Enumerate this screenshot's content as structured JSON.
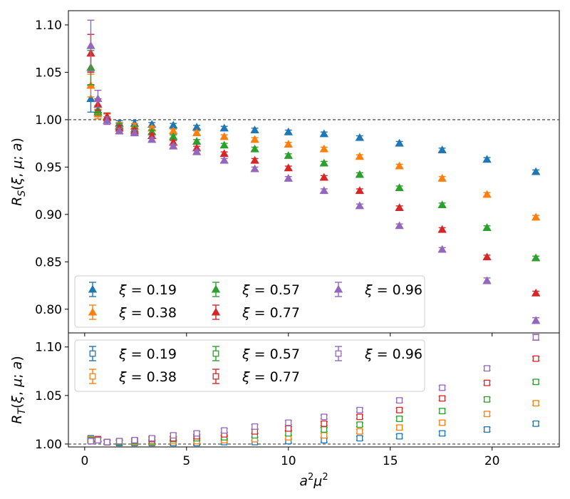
{
  "chart_data": [
    {
      "type": "scatter",
      "panel": "top",
      "ylabel": "R_S(ξ, μ; a)",
      "xlabel": "",
      "xlim": [
        -0.8,
        23.3
      ],
      "ylim": [
        0.775,
        1.115
      ],
      "yticks": [
        "0.80",
        "0.85",
        "0.90",
        "0.95",
        "1.00",
        "1.05",
        "1.10"
      ],
      "reference_line": 1.0,
      "marker": "filled-triangle",
      "legend_position": "lower-left",
      "x": [
        0.3,
        0.65,
        1.1,
        1.7,
        2.45,
        3.3,
        4.35,
        5.5,
        6.85,
        8.35,
        10.0,
        11.75,
        13.5,
        15.45,
        17.55,
        19.75,
        22.15
      ],
      "series": [
        {
          "name": "ξ = 0.19",
          "label": "ξ = 0.19",
          "color": "#1f77b4",
          "values": [
            1.022,
            1.008,
            1.003,
            0.996,
            0.996,
            0.995,
            0.994,
            0.992,
            0.991,
            0.989,
            0.987,
            0.985,
            0.981,
            0.975,
            0.968,
            0.958,
            0.945
          ],
          "errors": [
            0.014,
            0.005,
            0.004,
            0.003,
            0.003,
            0.002,
            0.002,
            0.002,
            0.002,
            0.002,
            0.002,
            0.002,
            0.002,
            0.002,
            0.002,
            0.002,
            0.002
          ]
        },
        {
          "name": "ξ = 0.38",
          "label": "ξ = 0.38",
          "color": "#ff7f0e",
          "values": [
            1.036,
            1.006,
            1.002,
            0.994,
            0.993,
            0.991,
            0.988,
            0.986,
            0.982,
            0.979,
            0.974,
            0.969,
            0.961,
            0.951,
            0.938,
            0.921,
            0.897
          ],
          "errors": [
            0.012,
            0.005,
            0.004,
            0.003,
            0.003,
            0.002,
            0.002,
            0.002,
            0.002,
            0.002,
            0.002,
            0.002,
            0.002,
            0.002,
            0.002,
            0.002,
            0.002
          ]
        },
        {
          "name": "ξ = 0.57",
          "label": "ξ = 0.57",
          "color": "#2ca02c",
          "values": [
            1.055,
            1.01,
            1.003,
            0.993,
            0.99,
            0.987,
            0.982,
            0.977,
            0.973,
            0.969,
            0.962,
            0.954,
            0.942,
            0.928,
            0.91,
            0.886,
            0.854
          ],
          "errors": [
            0.018,
            0.005,
            0.004,
            0.003,
            0.003,
            0.002,
            0.002,
            0.002,
            0.002,
            0.002,
            0.002,
            0.002,
            0.002,
            0.002,
            0.002,
            0.002,
            0.002
          ]
        },
        {
          "name": "ξ = 0.77",
          "label": "ξ = 0.77",
          "color": "#d62728",
          "values": [
            1.07,
            1.016,
            1.003,
            0.991,
            0.988,
            0.983,
            0.976,
            0.97,
            0.964,
            0.957,
            0.949,
            0.939,
            0.925,
            0.907,
            0.884,
            0.855,
            0.817
          ],
          "errors": [
            0.02,
            0.006,
            0.004,
            0.003,
            0.003,
            0.002,
            0.002,
            0.002,
            0.002,
            0.002,
            0.002,
            0.002,
            0.002,
            0.002,
            0.002,
            0.002,
            0.002
          ]
        },
        {
          "name": "ξ = 0.96",
          "label": "ξ = 0.96",
          "color": "#9467bd",
          "values": [
            1.078,
            1.022,
            0.999,
            0.988,
            0.986,
            0.979,
            0.972,
            0.966,
            0.957,
            0.948,
            0.938,
            0.925,
            0.909,
            0.888,
            0.863,
            0.83,
            0.788
          ],
          "errors": [
            0.027,
            0.009,
            0.004,
            0.003,
            0.003,
            0.002,
            0.002,
            0.002,
            0.002,
            0.002,
            0.002,
            0.002,
            0.002,
            0.002,
            0.002,
            0.003,
            0.003
          ]
        }
      ]
    },
    {
      "type": "scatter",
      "panel": "bottom",
      "ylabel": "R_T(ξ, μ; a)",
      "xlabel": "a²μ²",
      "xlim": [
        -0.8,
        23.3
      ],
      "ylim": [
        0.997,
        1.1145
      ],
      "yticks": [
        "1.00",
        "1.05",
        "1.10"
      ],
      "xticks": [
        "0",
        "5",
        "10",
        "15",
        "20"
      ],
      "reference_line": 1.0,
      "marker": "open-square",
      "legend_position": "upper-left",
      "x": [
        0.3,
        0.65,
        1.1,
        1.7,
        2.45,
        3.3,
        4.35,
        5.5,
        6.85,
        8.35,
        10.0,
        11.75,
        13.5,
        15.45,
        17.55,
        19.75,
        22.15
      ],
      "series": [
        {
          "name": "ξ = 0.19",
          "label": "ξ = 0.19",
          "color": "#1f77b4",
          "values": [
            1.006,
            1.005,
            1.002,
            1.001,
            1.001,
            1.001,
            1.001,
            1.001,
            1.002,
            1.002,
            1.003,
            1.004,
            1.006,
            1.008,
            1.011,
            1.015,
            1.021
          ],
          "errors": [
            0.002,
            0.002,
            0.002,
            0.002,
            0.002,
            0.002,
            0.002,
            0.002,
            0.002,
            0.002,
            0.002,
            0.002,
            0.002,
            0.002,
            0.002,
            0.002,
            0.002
          ]
        },
        {
          "name": "ξ = 0.38",
          "label": "ξ = 0.38",
          "color": "#ff7f0e",
          "values": [
            1.005,
            1.005,
            1.002,
            1.002,
            1.002,
            1.002,
            1.003,
            1.003,
            1.004,
            1.005,
            1.007,
            1.009,
            1.013,
            1.017,
            1.022,
            1.031,
            1.042
          ],
          "errors": [
            0.002,
            0.002,
            0.002,
            0.002,
            0.002,
            0.002,
            0.002,
            0.002,
            0.002,
            0.002,
            0.002,
            0.002,
            0.002,
            0.002,
            0.002,
            0.002,
            0.002
          ]
        },
        {
          "name": "ξ = 0.57",
          "label": "ξ = 0.57",
          "color": "#2ca02c",
          "values": [
            1.004,
            1.005,
            1.002,
            1.002,
            1.003,
            1.003,
            1.005,
            1.006,
            1.007,
            1.009,
            1.011,
            1.015,
            1.02,
            1.026,
            1.034,
            1.046,
            1.064
          ],
          "errors": [
            0.002,
            0.002,
            0.002,
            0.002,
            0.002,
            0.002,
            0.002,
            0.002,
            0.002,
            0.002,
            0.002,
            0.002,
            0.002,
            0.002,
            0.002,
            0.002,
            0.002
          ]
        },
        {
          "name": "ξ = 0.77",
          "label": "ξ = 0.77",
          "color": "#d62728",
          "values": [
            1.003,
            1.005,
            1.002,
            1.003,
            1.004,
            1.005,
            1.006,
            1.008,
            1.01,
            1.013,
            1.016,
            1.021,
            1.028,
            1.035,
            1.047,
            1.063,
            1.088
          ],
          "errors": [
            0.002,
            0.002,
            0.002,
            0.002,
            0.002,
            0.002,
            0.002,
            0.002,
            0.002,
            0.002,
            0.002,
            0.002,
            0.002,
            0.002,
            0.002,
            0.002,
            0.002
          ]
        },
        {
          "name": "ξ = 0.96",
          "label": "ξ = 0.96",
          "color": "#9467bd",
          "values": [
            1.003,
            1.004,
            1.002,
            1.003,
            1.004,
            1.006,
            1.009,
            1.011,
            1.014,
            1.018,
            1.022,
            1.028,
            1.035,
            1.045,
            1.058,
            1.078,
            1.11
          ],
          "errors": [
            0.002,
            0.002,
            0.002,
            0.002,
            0.002,
            0.002,
            0.002,
            0.002,
            0.002,
            0.002,
            0.002,
            0.002,
            0.002,
            0.002,
            0.002,
            0.002,
            0.003
          ]
        }
      ]
    }
  ]
}
